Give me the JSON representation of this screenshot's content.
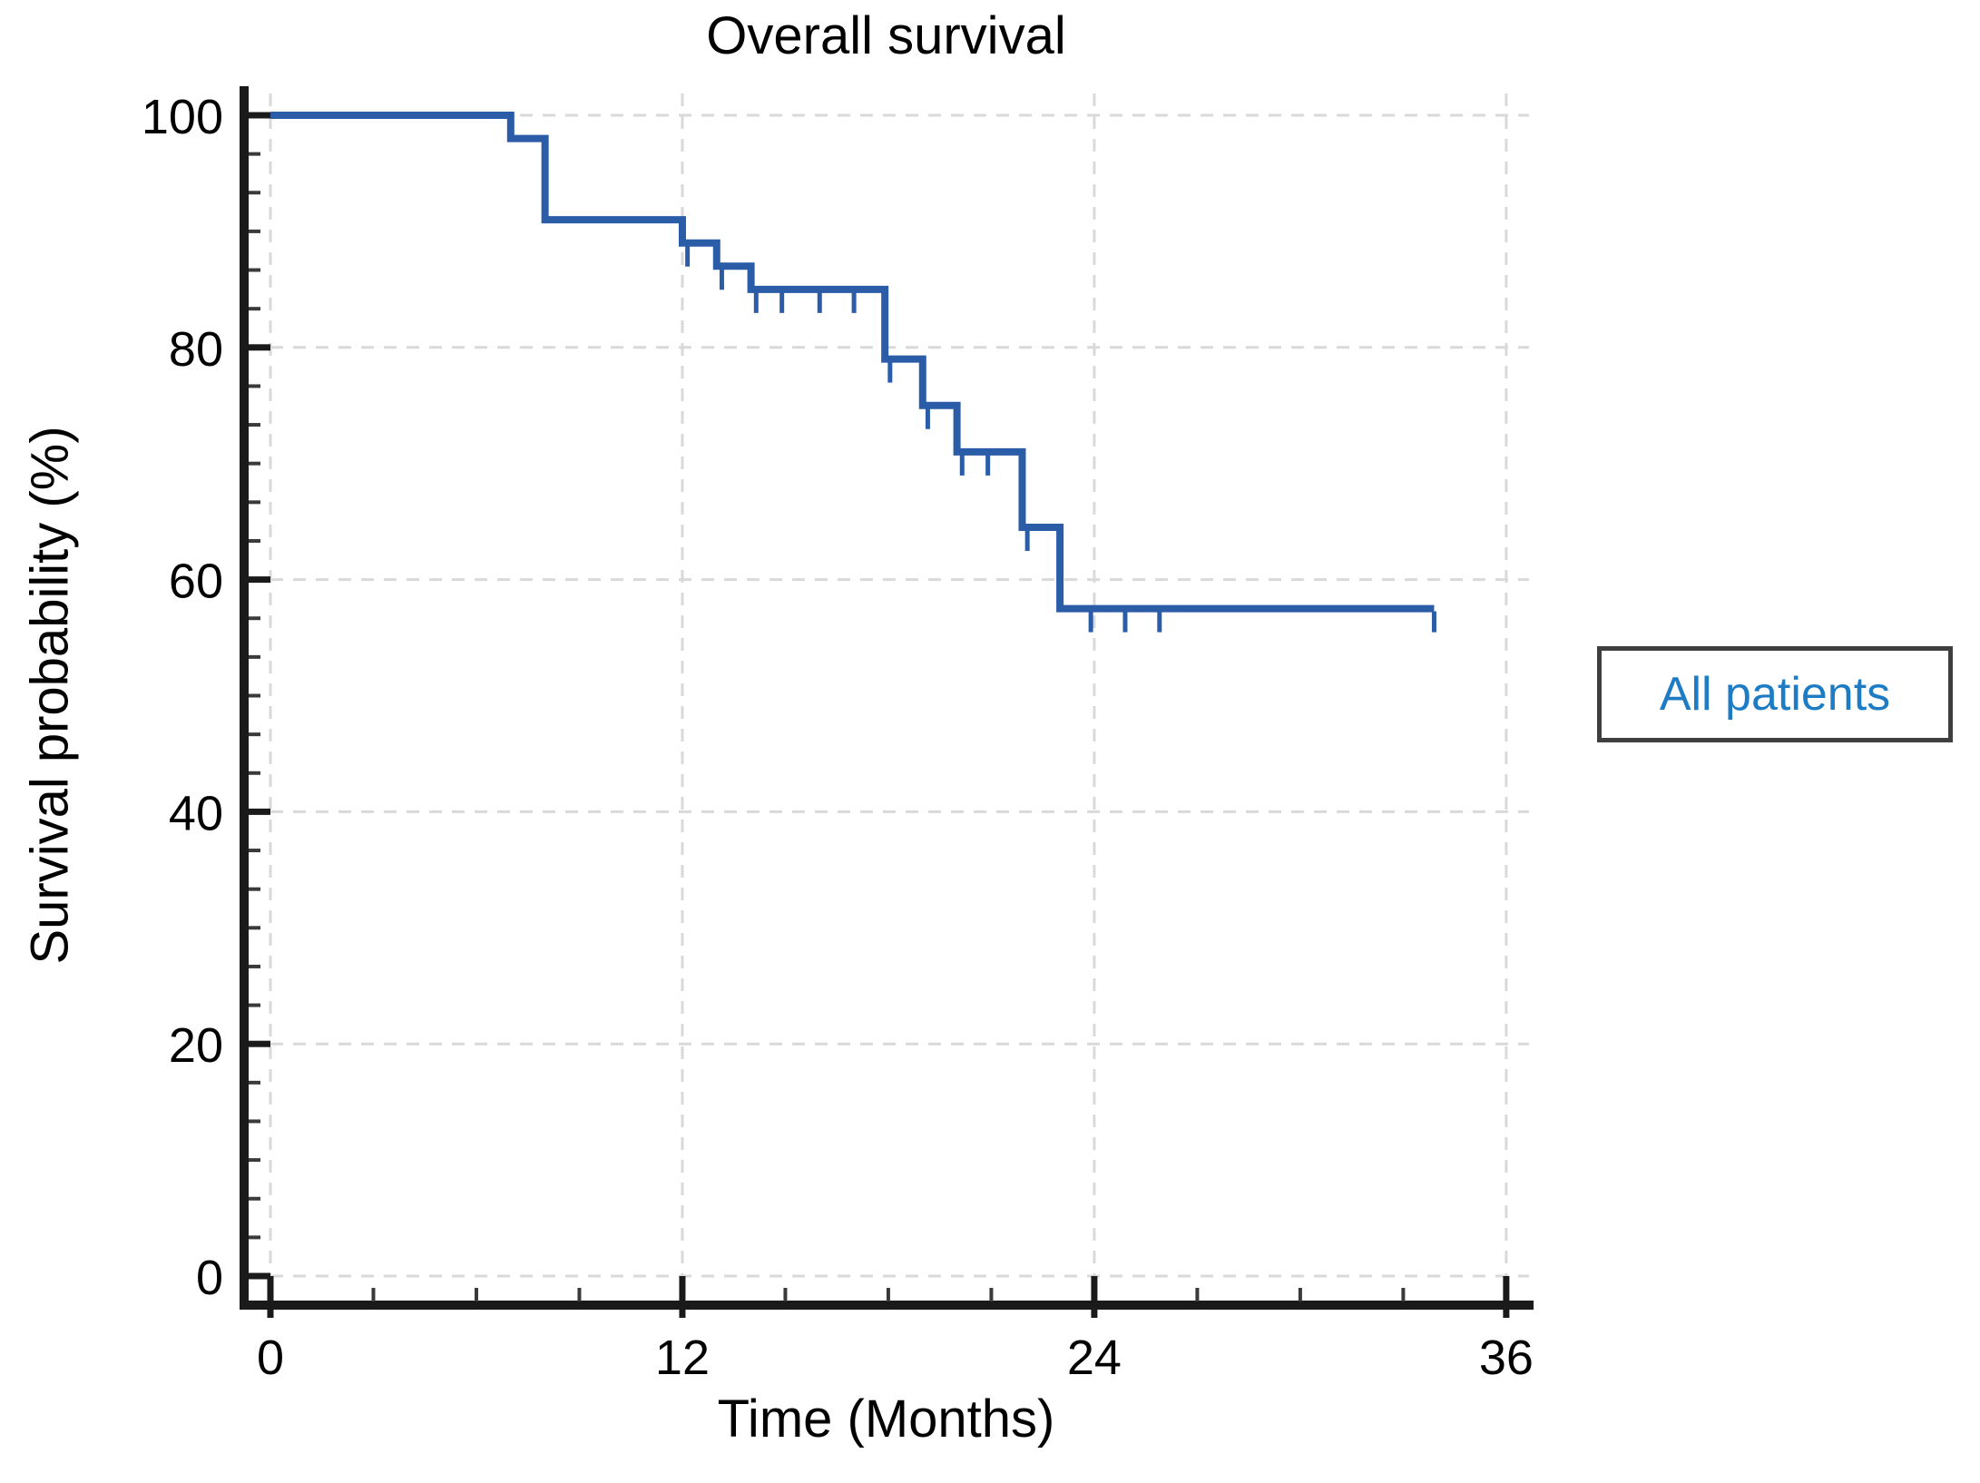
{
  "figure": {
    "background": "#ffffff"
  },
  "chart_data": {
    "type": "line",
    "variant": "kaplan_meier_step_curve",
    "title": "Overall survival",
    "xlabel": "Time (Months)",
    "ylabel": "Survival probability (%)",
    "xlim": [
      0,
      37.7
    ],
    "ylim": [
      0,
      100
    ],
    "x_ticks": [
      0,
      12,
      24,
      36
    ],
    "y_ticks": [
      0,
      20,
      40,
      60,
      80,
      100
    ],
    "x_minor_tick_step_months": 3,
    "y_minor_tick_intervals_per_major": 6,
    "grid": {
      "style": "dashed",
      "color": "#d9d9d9"
    },
    "axis_color": "#1a1a1a",
    "minor_tick_color": "#3a3a3a",
    "text_color": "#000000",
    "legend": {
      "label": "All patients",
      "position": "right-outside",
      "text_color": "#1e7cc4",
      "border_color": "#3f3f3f",
      "background": "#ffffff"
    },
    "series": [
      {
        "name": "All patients",
        "color": "#2a5ca8",
        "start_point": {
          "time_months": 0,
          "survival_pct": 100
        },
        "steps_time_vs_survival_pct": [
          [
            7,
            98
          ],
          [
            8,
            91
          ],
          [
            12,
            89
          ],
          [
            13,
            87
          ],
          [
            14,
            85
          ],
          [
            17.9,
            79
          ],
          [
            19,
            75
          ],
          [
            20,
            71
          ],
          [
            21.9,
            64.5
          ],
          [
            23,
            57.5
          ]
        ],
        "end_of_followup_months": 33.9,
        "censor_marks_time_vs_survival_pct": [
          [
            12.15,
            89
          ],
          [
            13.15,
            87
          ],
          [
            14.15,
            85
          ],
          [
            14.9,
            85
          ],
          [
            16,
            85
          ],
          [
            17,
            85
          ],
          [
            18.05,
            79
          ],
          [
            19.15,
            75
          ],
          [
            20.15,
            71
          ],
          [
            20.9,
            71
          ],
          [
            22.05,
            64.5
          ],
          [
            23.9,
            57.5
          ],
          [
            24.9,
            57.5
          ],
          [
            25.9,
            57.5
          ],
          [
            33.9,
            57.5
          ]
        ]
      }
    ]
  }
}
